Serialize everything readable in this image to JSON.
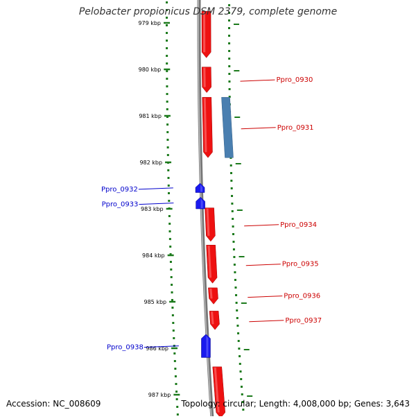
{
  "title": "Pelobacter propionicus DSM 2379, complete genome",
  "footer": {
    "accession": "Accession: NC_008609",
    "summary": "Topology: circular; Length: 4,008,000 bp; Genes: 3,643"
  },
  "colors": {
    "forward_gene": "#ee1111",
    "reverse_gene": "#1a1aee",
    "other_feature": "#4a7fb0",
    "backbone": "#777777",
    "tick": "#1c7a1c",
    "label_fwd": "#cc0000",
    "label_rev": "#0000cc"
  },
  "scale": {
    "unit": "kbp",
    "ticks": [
      {
        "kbp": 979,
        "label": "979 kbp"
      },
      {
        "kbp": 980,
        "label": "980 kbp"
      },
      {
        "kbp": 981,
        "label": "981 kbp"
      },
      {
        "kbp": 982,
        "label": "982 kbp"
      },
      {
        "kbp": 983,
        "label": "983 kbp"
      },
      {
        "kbp": 984,
        "label": "984 kbp"
      },
      {
        "kbp": 985,
        "label": "985 kbp"
      },
      {
        "kbp": 986,
        "label": "986 kbp"
      },
      {
        "kbp": 987,
        "label": "987 kbp"
      }
    ]
  },
  "genes": [
    {
      "label": "",
      "strand": "+",
      "type": "cds",
      "start_kbp": 978.75,
      "end_kbp": 979.75
    },
    {
      "label": "Ppro_0930",
      "strand": "+",
      "type": "cds",
      "start_kbp": 979.95,
      "end_kbp": 980.5
    },
    {
      "label": "Ppro_0931",
      "strand": "+",
      "type": "cds",
      "start_kbp": 980.6,
      "end_kbp": 981.9
    },
    {
      "label": "",
      "strand": "+",
      "type": "other",
      "start_kbp": 980.6,
      "end_kbp": 981.9
    },
    {
      "label": "Ppro_0932",
      "strand": "-",
      "type": "cds",
      "start_kbp": 982.45,
      "end_kbp": 982.65
    },
    {
      "label": "Ppro_0933",
      "strand": "-",
      "type": "cds",
      "start_kbp": 982.75,
      "end_kbp": 983.0
    },
    {
      "label": "Ppro_0934",
      "strand": "+",
      "type": "cds",
      "start_kbp": 982.98,
      "end_kbp": 983.7
    },
    {
      "label": "Ppro_0935",
      "strand": "+",
      "type": "cds",
      "start_kbp": 983.78,
      "end_kbp": 984.6
    },
    {
      "label": "Ppro_0936",
      "strand": "+",
      "type": "cds",
      "start_kbp": 984.7,
      "end_kbp": 985.05
    },
    {
      "label": "Ppro_0937",
      "strand": "+",
      "type": "cds",
      "start_kbp": 985.2,
      "end_kbp": 985.6
    },
    {
      "label": "Ppro_0938",
      "strand": "-",
      "type": "cds",
      "start_kbp": 985.7,
      "end_kbp": 986.2
    },
    {
      "label": "",
      "strand": "+",
      "type": "cds",
      "start_kbp": 986.4,
      "end_kbp": 987.5
    }
  ]
}
